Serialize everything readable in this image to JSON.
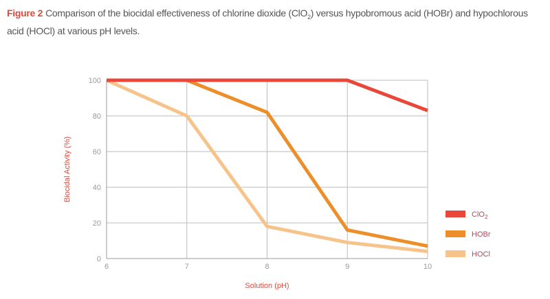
{
  "caption": {
    "label": "Figure 2",
    "text_before": "Comparison of the biocidal effectiveness of chlorine dioxide (ClO",
    "subscript": "2",
    "text_after": ") versus hypobromous acid (HOBr) and hypochlorous acid (HOCl) at various pH levels."
  },
  "chart_data": {
    "type": "line",
    "x": [
      6,
      7,
      8,
      9,
      10
    ],
    "xlabel": "Solution (pH)",
    "ylabel": "Biocidal Activity (%)",
    "xlim": [
      6,
      10
    ],
    "ylim": [
      0,
      100
    ],
    "xticks": [
      "6",
      "7",
      "8",
      "9",
      "10"
    ],
    "yticks": [
      "0",
      "20",
      "40",
      "60",
      "80",
      "100"
    ],
    "grid": true,
    "legend_position": "right",
    "series": [
      {
        "name": "ClO2",
        "name_main": "ClO",
        "name_sub": "2",
        "color": "#e8473a",
        "values": [
          100,
          100,
          100,
          100,
          83
        ]
      },
      {
        "name": "HOBr",
        "color": "#ec8f2a",
        "values": [
          100,
          100,
          82,
          16,
          7
        ]
      },
      {
        "name": "HOCl",
        "color": "#f6c48a",
        "values": [
          100,
          80,
          18,
          9,
          4
        ]
      }
    ]
  }
}
